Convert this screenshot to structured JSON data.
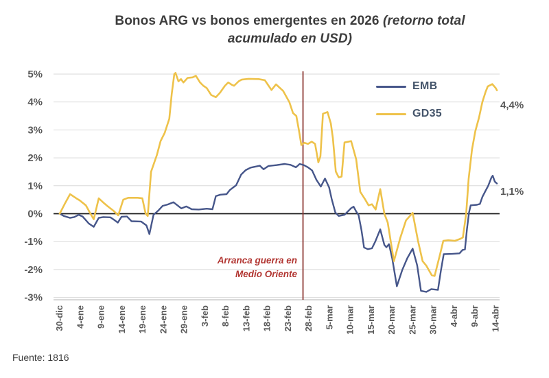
{
  "title": {
    "bold": "Bonos ARG vs bonos emergentes en 2026",
    "italic_part1": " (retorno total",
    "italic_part2": "acumulado en USD)"
  },
  "source": "Fuente: 1816",
  "legend": [
    {
      "label": "EMB",
      "color": "#46568a"
    },
    {
      "label": "GD35",
      "color": "#eec24a"
    }
  ],
  "annotation": {
    "line1": "Arranca guerra en",
    "line2": "Medio Oriente",
    "color": "#b23632"
  },
  "end_labels": {
    "gd35": "4,4%",
    "emb": "1,1%"
  },
  "colors": {
    "grid": "#d9d9d9",
    "zero_line": "#1c1c1c",
    "axis_line": "#c0c0c0",
    "vline": "#8e3a36",
    "tick_text": "#595959",
    "title_text": "#3d3d3d"
  },
  "chart_data": {
    "type": "line",
    "title": "Bonos ARG vs bonos emergentes en 2026 (retorno total acumulado en USD)",
    "xlabel": "",
    "ylabel": "",
    "ylim": [
      -3,
      5
    ],
    "grid": true,
    "legend_position": "top-right-inside",
    "y_ticks": [
      "5%",
      "4%",
      "3%",
      "2%",
      "1%",
      "0%",
      "-1%",
      "-2%",
      "-3%"
    ],
    "y_tick_values": [
      5,
      4,
      3,
      2,
      1,
      0,
      -1,
      -2,
      -3
    ],
    "x_ticks": [
      "30-dic",
      "4-ene",
      "9-ene",
      "14-ene",
      "19-ene",
      "24-ene",
      "29-ene",
      "3-feb",
      "8-feb",
      "13-feb",
      "18-feb",
      "23-feb",
      "28-feb",
      "5-mar",
      "10-mar",
      "15-mar",
      "20-mar",
      "25-mar",
      "30-mar",
      "4-abr",
      "9-abr",
      "14-abr"
    ],
    "x_tick_interval_days": 5,
    "vline": {
      "day": 58.6,
      "between": "23-feb / 28-feb",
      "color": "#8e3a36",
      "label": "Arranca guerra en Medio Oriente"
    },
    "series": [
      {
        "name": "EMB",
        "color": "#46568a",
        "end_value_label": "1,1%",
        "points": [
          [
            0,
            0
          ],
          [
            1,
            -0.08
          ],
          [
            2.5,
            -0.15
          ],
          [
            3.5,
            -0.12
          ],
          [
            4.6,
            -0.04
          ],
          [
            5.5,
            -0.1
          ],
          [
            7,
            -0.35
          ],
          [
            8.2,
            -0.47
          ],
          [
            9.4,
            -0.15
          ],
          [
            10.5,
            -0.12
          ],
          [
            12.2,
            -0.13
          ],
          [
            13.2,
            -0.23
          ],
          [
            14,
            -0.32
          ],
          [
            14.9,
            -0.11
          ],
          [
            16.2,
            -0.1
          ],
          [
            17.3,
            -0.27
          ],
          [
            19.6,
            -0.28
          ],
          [
            20.9,
            -0.42
          ],
          [
            21.6,
            -0.73
          ],
          [
            22.6,
            -0.04
          ],
          [
            23.8,
            0.12
          ],
          [
            24.8,
            0.28
          ],
          [
            26,
            0.33
          ],
          [
            27.4,
            0.41
          ],
          [
            29.3,
            0.19
          ],
          [
            30.5,
            0.26
          ],
          [
            31.8,
            0.16
          ],
          [
            33.5,
            0.15
          ],
          [
            35.4,
            0.18
          ],
          [
            36.8,
            0.16
          ],
          [
            37.6,
            0.63
          ],
          [
            38.7,
            0.68
          ],
          [
            40.2,
            0.7
          ],
          [
            41,
            0.85
          ],
          [
            42.5,
            1.02
          ],
          [
            43.7,
            1.4
          ],
          [
            44.8,
            1.56
          ],
          [
            46,
            1.65
          ],
          [
            47.3,
            1.69
          ],
          [
            48.2,
            1.72
          ],
          [
            49.1,
            1.59
          ],
          [
            50.3,
            1.71
          ],
          [
            52.2,
            1.74
          ],
          [
            54.2,
            1.78
          ],
          [
            55.6,
            1.75
          ],
          [
            56.9,
            1.66
          ],
          [
            57.8,
            1.78
          ],
          [
            58.8,
            1.74
          ],
          [
            59.8,
            1.66
          ],
          [
            60.8,
            1.55
          ],
          [
            61.8,
            1.22
          ],
          [
            62.9,
            0.97
          ],
          [
            63.9,
            1.26
          ],
          [
            64.9,
            0.94
          ],
          [
            65.5,
            0.53
          ],
          [
            66.4,
            0.04
          ],
          [
            67.2,
            -0.08
          ],
          [
            68.6,
            -0.04
          ],
          [
            70.2,
            0.2
          ],
          [
            70.8,
            0.25
          ],
          [
            71.4,
            0.08
          ],
          [
            72,
            -0.06
          ],
          [
            72.7,
            -0.6
          ],
          [
            73.3,
            -1.21
          ],
          [
            74.2,
            -1.27
          ],
          [
            75.2,
            -1.24
          ],
          [
            76,
            -1.0
          ],
          [
            77.2,
            -0.56
          ],
          [
            78.2,
            -1.12
          ],
          [
            78.7,
            -1.2
          ],
          [
            79.3,
            -1.09
          ],
          [
            80.1,
            -1.61
          ],
          [
            81.2,
            -2.6
          ],
          [
            82.5,
            -2.02
          ],
          [
            83.7,
            -1.6
          ],
          [
            85,
            -1.25
          ],
          [
            86.1,
            -1.85
          ],
          [
            87,
            -2.76
          ],
          [
            88.3,
            -2.8
          ],
          [
            89.5,
            -2.7
          ],
          [
            91.1,
            -2.73
          ],
          [
            91.8,
            -2.05
          ],
          [
            92.5,
            -1.45
          ],
          [
            94.5,
            -1.44
          ],
          [
            96.3,
            -1.42
          ],
          [
            97,
            -1.3
          ],
          [
            97.6,
            -1.28
          ],
          [
            98.1,
            -0.54
          ],
          [
            98.6,
            0.05
          ],
          [
            99,
            0.3
          ],
          [
            100.5,
            0.32
          ],
          [
            101.2,
            0.35
          ],
          [
            101.8,
            0.6
          ],
          [
            102.5,
            0.8
          ],
          [
            103.2,
            1.0
          ],
          [
            104,
            1.3
          ],
          [
            104.3,
            1.36
          ],
          [
            104.8,
            1.15
          ],
          [
            105.3,
            1.08
          ]
        ]
      },
      {
        "name": "GD35",
        "color": "#eec24a",
        "end_value_label": "4,4%",
        "points": [
          [
            0,
            0
          ],
          [
            1.2,
            0.35
          ],
          [
            2.5,
            0.7
          ],
          [
            4,
            0.55
          ],
          [
            4.8,
            0.48
          ],
          [
            6.3,
            0.3
          ],
          [
            7.4,
            0
          ],
          [
            8.2,
            -0.2
          ],
          [
            9.4,
            0.55
          ],
          [
            10.5,
            0.4
          ],
          [
            11.6,
            0.26
          ],
          [
            13,
            0.1
          ],
          [
            14.1,
            -0.06
          ],
          [
            15.3,
            0.5
          ],
          [
            16.5,
            0.57
          ],
          [
            18.8,
            0.57
          ],
          [
            19.9,
            0.55
          ],
          [
            20.7,
            0
          ],
          [
            21.2,
            -0.08
          ],
          [
            22,
            1.5
          ],
          [
            23.4,
            2.1
          ],
          [
            24.3,
            2.6
          ],
          [
            25.3,
            2.9
          ],
          [
            26.4,
            3.4
          ],
          [
            27,
            4.3
          ],
          [
            27.6,
            5.0
          ],
          [
            27.9,
            5.04
          ],
          [
            28.6,
            4.74
          ],
          [
            29.2,
            4.82
          ],
          [
            29.8,
            4.7
          ],
          [
            30.8,
            4.86
          ],
          [
            32,
            4.88
          ],
          [
            32.8,
            4.94
          ],
          [
            33.8,
            4.7
          ],
          [
            34.6,
            4.58
          ],
          [
            35.4,
            4.5
          ],
          [
            36.5,
            4.25
          ],
          [
            37.6,
            4.17
          ],
          [
            38.6,
            4.33
          ],
          [
            39.8,
            4.58
          ],
          [
            40.6,
            4.7
          ],
          [
            41.4,
            4.62
          ],
          [
            42,
            4.58
          ],
          [
            43.1,
            4.74
          ],
          [
            43.8,
            4.8
          ],
          [
            45.5,
            4.83
          ],
          [
            47.9,
            4.82
          ],
          [
            49.4,
            4.78
          ],
          [
            51,
            4.43
          ],
          [
            52.1,
            4.63
          ],
          [
            53.8,
            4.4
          ],
          [
            55.3,
            4.0
          ],
          [
            56.2,
            3.6
          ],
          [
            57,
            3.5
          ],
          [
            57.6,
            3.0
          ],
          [
            58.2,
            2.46
          ],
          [
            58.9,
            2.54
          ],
          [
            59.8,
            2.5
          ],
          [
            60.7,
            2.58
          ],
          [
            61.5,
            2.5
          ],
          [
            62.3,
            1.84
          ],
          [
            62.8,
            2.05
          ],
          [
            63.4,
            3.58
          ],
          [
            64.5,
            3.64
          ],
          [
            65.3,
            3.23
          ],
          [
            65.8,
            2.7
          ],
          [
            66.5,
            1.51
          ],
          [
            67.2,
            1.3
          ],
          [
            67.9,
            1.33
          ],
          [
            68.6,
            2.55
          ],
          [
            70.2,
            2.6
          ],
          [
            71.4,
            1.95
          ],
          [
            72.4,
            0.78
          ],
          [
            73.6,
            0.5
          ],
          [
            74.4,
            0.3
          ],
          [
            75.2,
            0.34
          ],
          [
            76.1,
            0.15
          ],
          [
            77.2,
            0.88
          ],
          [
            78.2,
            0
          ],
          [
            79,
            -0.32
          ],
          [
            80.5,
            -1.7
          ],
          [
            82,
            -0.88
          ],
          [
            83.4,
            -0.24
          ],
          [
            85,
            0.03
          ],
          [
            86.3,
            -0.97
          ],
          [
            87.4,
            -1.7
          ],
          [
            88.3,
            -1.86
          ],
          [
            89.6,
            -2.2
          ],
          [
            90.3,
            -2.23
          ],
          [
            91.6,
            -1.46
          ],
          [
            92.4,
            -0.97
          ],
          [
            93.6,
            -0.95
          ],
          [
            95.2,
            -0.97
          ],
          [
            96.5,
            -0.9
          ],
          [
            97.1,
            -0.85
          ],
          [
            97.9,
            0
          ],
          [
            98.5,
            1.25
          ],
          [
            99.3,
            2.3
          ],
          [
            100.1,
            2.95
          ],
          [
            101,
            3.44
          ],
          [
            101.8,
            4.0
          ],
          [
            102.6,
            4.37
          ],
          [
            103.1,
            4.56
          ],
          [
            104.2,
            4.64
          ],
          [
            105,
            4.5
          ],
          [
            105.3,
            4.42
          ]
        ]
      }
    ]
  }
}
